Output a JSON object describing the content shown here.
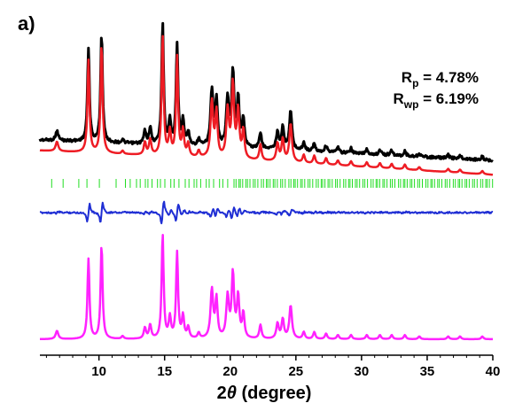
{
  "chart_data": {
    "type": "line",
    "panel_label": "a)",
    "annotations": [
      {
        "main": "R",
        "sub": "p",
        "rest": " = 4.78%"
      },
      {
        "main": "R",
        "sub": "wp",
        "rest": " = 6.19%"
      }
    ],
    "xlabel_prefix": "2",
    "xlabel_symbol": "θ",
    "xlabel_suffix": " (degree)",
    "xlim": [
      5.5,
      40
    ],
    "xticks": [
      10,
      15,
      20,
      25,
      30,
      35,
      40
    ],
    "grid": false,
    "legend": "none",
    "peaks": [
      {
        "x": 6.8,
        "h": 0.06,
        "w": 0.12
      },
      {
        "x": 9.2,
        "h": 0.58,
        "w": 0.09
      },
      {
        "x": 10.2,
        "h": 0.68,
        "w": 0.09
      },
      {
        "x": 11.8,
        "h": 0.02,
        "w": 0.1
      },
      {
        "x": 13.5,
        "h": 0.08,
        "w": 0.1
      },
      {
        "x": 13.9,
        "h": 0.1,
        "w": 0.1
      },
      {
        "x": 14.85,
        "h": 0.76,
        "w": 0.09
      },
      {
        "x": 15.4,
        "h": 0.15,
        "w": 0.1
      },
      {
        "x": 15.95,
        "h": 0.62,
        "w": 0.09
      },
      {
        "x": 16.4,
        "h": 0.16,
        "w": 0.1
      },
      {
        "x": 16.8,
        "h": 0.08,
        "w": 0.1
      },
      {
        "x": 17.6,
        "h": 0.04,
        "w": 0.1
      },
      {
        "x": 18.6,
        "h": 0.35,
        "w": 0.12
      },
      {
        "x": 18.95,
        "h": 0.28,
        "w": 0.1
      },
      {
        "x": 19.8,
        "h": 0.3,
        "w": 0.12
      },
      {
        "x": 20.2,
        "h": 0.46,
        "w": 0.11
      },
      {
        "x": 20.6,
        "h": 0.3,
        "w": 0.11
      },
      {
        "x": 21.0,
        "h": 0.18,
        "w": 0.1
      },
      {
        "x": 22.3,
        "h": 0.1,
        "w": 0.1
      },
      {
        "x": 23.6,
        "h": 0.11,
        "w": 0.11
      },
      {
        "x": 24.0,
        "h": 0.14,
        "w": 0.11
      },
      {
        "x": 24.6,
        "h": 0.24,
        "w": 0.12
      },
      {
        "x": 25.6,
        "h": 0.05,
        "w": 0.1
      },
      {
        "x": 26.4,
        "h": 0.05,
        "w": 0.1
      },
      {
        "x": 27.3,
        "h": 0.04,
        "w": 0.1
      },
      {
        "x": 28.2,
        "h": 0.03,
        "w": 0.1
      },
      {
        "x": 29.2,
        "h": 0.03,
        "w": 0.1
      },
      {
        "x": 30.4,
        "h": 0.03,
        "w": 0.1
      },
      {
        "x": 31.4,
        "h": 0.03,
        "w": 0.1
      },
      {
        "x": 32.3,
        "h": 0.03,
        "w": 0.1
      },
      {
        "x": 33.3,
        "h": 0.03,
        "w": 0.1
      },
      {
        "x": 34.4,
        "h": 0.02,
        "w": 0.1
      },
      {
        "x": 36.6,
        "h": 0.02,
        "w": 0.1
      },
      {
        "x": 37.5,
        "h": 0.02,
        "w": 0.1
      },
      {
        "x": 39.2,
        "h": 0.02,
        "w": 0.1
      }
    ],
    "series": [
      {
        "role": "observed",
        "color": "#000000"
      },
      {
        "role": "calculated",
        "color": "#ee1c24"
      },
      {
        "role": "bragg-positions",
        "color": "#22dd22"
      },
      {
        "role": "difference",
        "color": "#1f2ed4"
      },
      {
        "role": "simulated",
        "color": "#ff22ff"
      }
    ]
  }
}
